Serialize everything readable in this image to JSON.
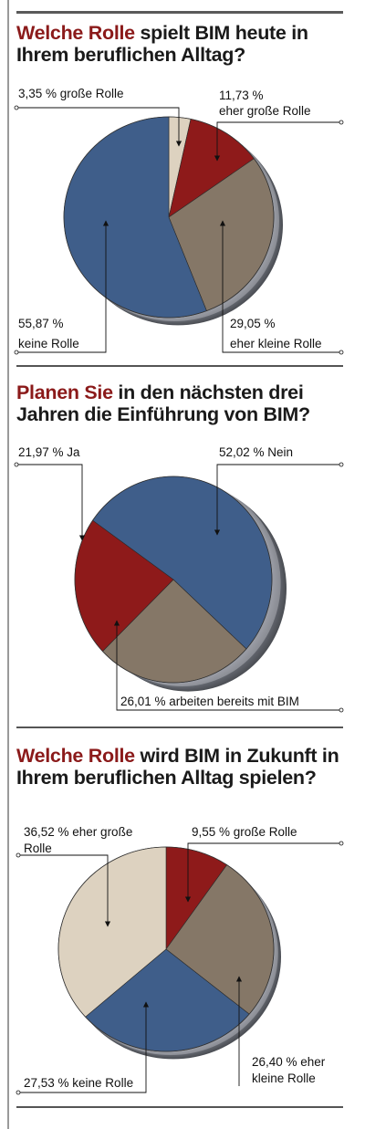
{
  "charts": [
    {
      "title_highlight": "Welche Rolle",
      "title_rest": " spielt BIM heute in Ihrem beruflichen Alltag?"
    },
    {
      "title_highlight": "Planen Sie",
      "title_rest": " in den nächsten drei Jahren die Einführung von BIM?"
    },
    {
      "title_highlight": "Welche Rolle",
      "title_rest": " wird BIM in Zukunft in Ihrem beruflichen Alltag spielen?"
    }
  ],
  "chart_data": [
    {
      "type": "pie",
      "title": "Welche Rolle spielt BIM heute in Ihrem beruflichen Alltag?",
      "slices": [
        {
          "label": "3,35 % große Rolle",
          "value": 3.35,
          "color": "#ddd2c0"
        },
        {
          "label": "11,73 % eher große Rolle",
          "value": 11.73,
          "color": "#8e1a1a"
        },
        {
          "label": "29,05 % eher kleine Rolle",
          "value": 29.05,
          "color": "#857767"
        },
        {
          "label": "55,87 % keine Rolle",
          "value": 55.87,
          "color": "#3f5e8a"
        }
      ]
    },
    {
      "type": "pie",
      "title": "Planen Sie in den nächsten drei Jahren die Einführung von BIM?",
      "slices": [
        {
          "label": "52,02 % Nein",
          "value": 52.02,
          "color": "#3f5e8a"
        },
        {
          "label": "26,01 % arbeiten bereits mit BIM",
          "value": 26.01,
          "color": "#857767"
        },
        {
          "label": "21,97 % Ja",
          "value": 21.97,
          "color": "#8e1a1a"
        }
      ]
    },
    {
      "type": "pie",
      "title": "Welche Rolle wird BIM in Zukunft in Ihrem beruflichen Alltag spielen?",
      "slices": [
        {
          "label": "9,55 % große Rolle",
          "value": 9.55,
          "color": "#8e1a1a"
        },
        {
          "label": "26,40 % eher kleine Rolle",
          "value": 26.4,
          "color": "#857767"
        },
        {
          "label": "27,53 % keine Rolle",
          "value": 27.53,
          "color": "#3f5e8a"
        },
        {
          "label": "36,52 % eher große Rolle",
          "value": 36.52,
          "color": "#ddd2c0"
        }
      ]
    }
  ],
  "labels": {
    "c1": {
      "s0": "3,35 % große Rolle",
      "s1a": "11,73 %",
      "s1b": "eher große Rolle",
      "s2a": "29,05 %",
      "s2b": "eher kleine Rolle",
      "s3a": "55,87 %",
      "s3b": "keine Rolle"
    },
    "c2": {
      "s0": "52,02 % Nein",
      "s1": "26,01 %  arbeiten bereits mit BIM",
      "s2": "21,97 % Ja"
    },
    "c3": {
      "s0": "9,55 % große Rolle",
      "s1a": "26,40 % eher",
      "s1b": "kleine Rolle",
      "s2": "27,53 % keine Rolle",
      "s3a": "36,52 % eher große",
      "s3b": "Rolle"
    }
  }
}
